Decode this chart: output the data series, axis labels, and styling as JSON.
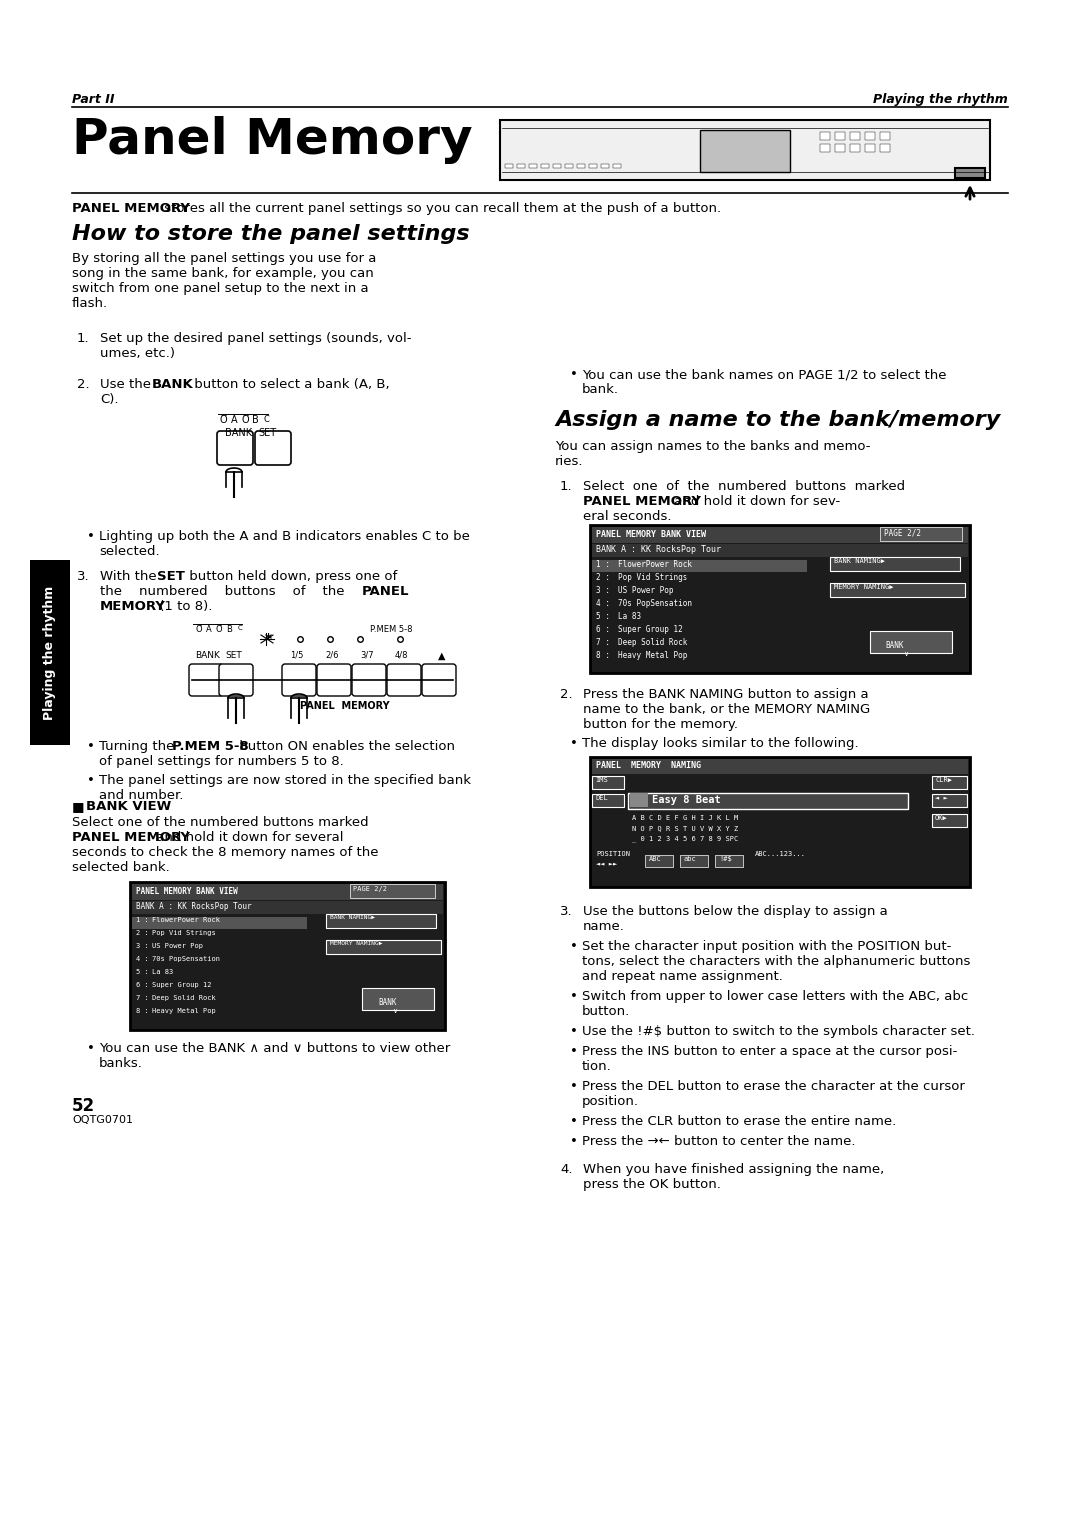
{
  "page_bg": "#ffffff",
  "top_label_left": "Part II",
  "top_label_right": "Playing the rhythm",
  "main_title": "Panel Memory",
  "intro_bold": "PANEL MEMORY",
  "intro_rest": " stores all the current panel settings so you can recall them at the push of a button.",
  "section1_title": "How to store the panel settings",
  "section1_para_lines": [
    "By storing all the panel settings you use for a",
    "song in the same bank, for example, you can",
    "switch from one panel setup to the next in a",
    "flash."
  ],
  "step1_lines": [
    "Set up the desired panel settings (sounds, vol-",
    "umes, etc.)"
  ],
  "step2_line1_pre": "Use the ",
  "step2_line1_bold": "BANK",
  "step2_line1_rest": " button to select a bank (A, B,",
  "step2_line2": "C).",
  "bullet1_lines": [
    "Lighting up both the A and B indicators enables C to be",
    "selected."
  ],
  "step3_line1_pre": "With the ",
  "step3_line1_bold": "SET",
  "step3_line1_rest": " button held down, press one of",
  "step3_line2": "the    numbered    buttons    of    the",
  "step3_line2_bold": "PANEL",
  "step3_line3_bold": "MEMORY",
  "step3_line3_rest": " (1 to 8).",
  "bullet2_line1_pre": "Turning the ",
  "bullet2_line1_bold": "P.MEM 5-8",
  "bullet2_line1_rest": " button ON enables the selection",
  "bullet2_line2": "of panel settings for numbers 5 to 8.",
  "bullet3_line1": "The panel settings are now stored in the specified bank",
  "bullet3_line2": "and number.",
  "bank_view_title": "BANK VIEW",
  "bank_view_lines": [
    "Select one of the numbered buttons marked",
    "PANEL MEMORY and hold it down for several",
    "seconds to check the 8 memory names of the",
    "selected bank."
  ],
  "bank_view_bullet_lines": [
    "You can use the BANK ∧ and ∨ buttons to view other",
    "banks."
  ],
  "section2_title": "Assign a name to the bank/memory",
  "section2_para_lines": [
    "You can assign names to the banks and memo-",
    "ries."
  ],
  "assign_step1_line1": "Select  one  of  the  numbered  buttons  marked",
  "assign_step1_line2_bold": "PANEL MEMORY",
  "assign_step1_line2_rest": " and hold it down for sev-",
  "assign_step1_line3": "eral seconds.",
  "assign_step2_line1": "Press the BANK NAMING button to assign a",
  "assign_step2_line2": "name to the bank, or the MEMORY NAMING",
  "assign_step2_line3": "button for the memory.",
  "assign_step2_bullet": "The display looks similar to the following.",
  "assign_step3_line1": "Use the buttons below the display to assign a",
  "assign_step3_line2": "name.",
  "assign_step3_bullets": [
    [
      "Set the character input position with the POSITION but-",
      "tons, select the characters with the alphanumeric buttons",
      "and repeat name assignment."
    ],
    [
      "Switch from upper to lower case letters with the ABC, abc",
      "button."
    ],
    [
      "Use the !#$ button to switch to the symbols character set."
    ],
    [
      "Press the INS button to enter a space at the cursor posi-",
      "tion."
    ],
    [
      "Press the DEL button to erase the character at the cursor",
      "position."
    ],
    [
      "Press the CLR button to erase the entire name."
    ],
    [
      "Press the →← button to center the name."
    ]
  ],
  "assign_step4_line1": "When you have finished assigning the name,",
  "assign_step4_line2": "press the OK button.",
  "page_num": "52",
  "page_code": "OQTG0701",
  "sidebar_text": "Playing the rhythm",
  "mem_names": [
    "FlowerPower Rock",
    "Pop Vid Strings",
    "US Power Pop",
    "70s PopSensation",
    "La 83",
    "Super Group 12",
    "Deep Solid Rock",
    "Heavy Metal Pop"
  ]
}
